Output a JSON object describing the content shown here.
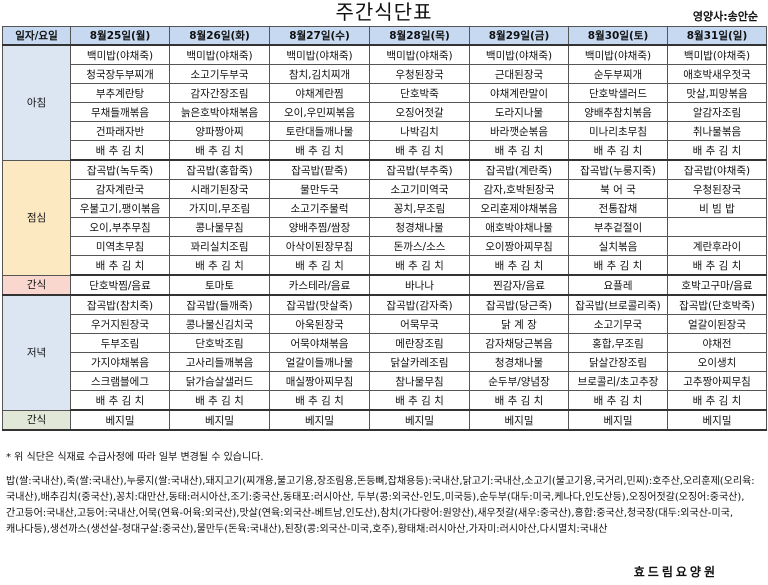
{
  "title": "주간식단표",
  "dietitian": "영양사:송안순",
  "header": {
    "corner": "일자/요일",
    "days": [
      "8월25일(월)",
      "8월26일(화)",
      "8월27일(수)",
      "8월28일(목)",
      "8월29일(금)",
      "8월30일(토)",
      "8월31일(일)"
    ]
  },
  "meals": {
    "breakfast": {
      "label": "아침",
      "rows": [
        [
          "백미밥(야채죽)",
          "백미밥(야채죽)",
          "백미밥(야채죽)",
          "백미밥(야채죽)",
          "백미밥(야채죽)",
          "백미밥(야채죽)",
          "백미밥(야채죽)"
        ],
        [
          "청국장두부찌개",
          "소고기두부국",
          "참치,김치찌개",
          "우청된장국",
          "근대된장국",
          "순두부찌개",
          "애호박새우젓국"
        ],
        [
          "부추계란탕",
          "감자간장조림",
          "야채계란찜",
          "단호박죽",
          "야채계란말이",
          "단호박샐러드",
          "맛살,피망볶음"
        ],
        [
          "무채들깨볶음",
          "늙은호박야채볶음",
          "오이,우민찌볶음",
          "오징어젓갈",
          "도라지나물",
          "양배추참치볶음",
          "알감자조림"
        ],
        [
          "건파래자반",
          "양파짱아찌",
          "토란대들깨나물",
          "나박김치",
          "바라깻순볶음",
          "미나리초무침",
          "취나물볶음"
        ],
        [
          "배 추 김 치",
          "배 추 김 치",
          "배 추 김 치",
          "배 추 김 치",
          "배 추 김 치",
          "배 추 김 치",
          "배 추 김 치"
        ]
      ]
    },
    "lunch": {
      "label": "점심",
      "rows": [
        [
          "잡곡밥(녹두죽)",
          "잡곡밥(홍합죽)",
          "잡곡밥(팥죽)",
          "잡곡밥(부추죽)",
          "잡곡밥(계란죽)",
          "잡곡밥(누룽지죽)",
          "잡곡밥(야채죽)"
        ],
        [
          "감자계란국",
          "시래기된장국",
          "물만두국",
          "소고기미역국",
          "감자,호박된장국",
          "북 어 국",
          "우청된장국"
        ],
        [
          "우불고기,팽이볶음",
          "가지미,무조림",
          "소고기주물럭",
          "꽁치,무조림",
          "오리훈제야채볶음",
          "전통잡채",
          "비 빔 밥"
        ],
        [
          "오이,부추무침",
          "콩나물무침",
          "양배추찜/쌈장",
          "청경채나물",
          "애호박야채나물",
          "부추겉절이",
          ""
        ],
        [
          "미역초무침",
          "꽈리실치조림",
          "아삭이된장무침",
          "돈까스/소스",
          "오이짱아찌무침",
          "실치볶음",
          "계란후라이"
        ],
        [
          "배 추 김 치",
          "배 추 김 치",
          "배 추 김 치",
          "배 추 김 치",
          "배 추 김 치",
          "배 추 김 치",
          "배 추 김 치"
        ]
      ]
    },
    "snack": {
      "label": "간식",
      "items": [
        "단호박찜/음료",
        "토마토",
        "카스테라/음료",
        "바나나",
        "찐감자/음료",
        "요플레",
        "호박고구마/음료"
      ]
    },
    "dinner": {
      "label": "저녁",
      "rows": [
        [
          "잡곡밥(참치죽)",
          "잡곡밥(들깨죽)",
          "잡곡밥(맛살죽)",
          "잡곡밥(감자죽)",
          "잡곡밥(당근죽)",
          "잡곡밥(브로콜리죽)",
          "잡곡밥(단호박죽)"
        ],
        [
          "우거지된장국",
          "콩나물신김치국",
          "아욱된장국",
          "어묵무국",
          "닭 계 장",
          "소고기무국",
          "얼갈이된장국"
        ],
        [
          "두부조림",
          "단호박조림",
          "어묵야채볶음",
          "메란장조림",
          "감자채당근볶음",
          "홍합,무조림",
          "야채전"
        ],
        [
          "가지야채볶음",
          "고사리들깨볶음",
          "얼갈이들깨나물",
          "닭살카레조림",
          "청경채나물",
          "닭살간장조림",
          "오이생치"
        ],
        [
          "스크램블에그",
          "닭가슴살샐러드",
          "매실짱아찌무침",
          "참나물무침",
          "순두부/양념장",
          "브로콜리/초고추장",
          "고추짱아찌무침"
        ],
        [
          "배 추 김 치",
          "배 추 김 치",
          "배 추 김 치",
          "배 추 김 치",
          "배 추 김 치",
          "배 추 김 치",
          "배 추 김 치"
        ]
      ]
    },
    "snack2": {
      "label": "간식",
      "items": [
        "베지밀",
        "베지밀",
        "베지밀",
        "베지밀",
        "베지밀",
        "베지밀",
        "베지밀"
      ]
    }
  },
  "note": "* 위 식단은 식재료 수급사정에 따라 일부 변경될 수 있습니다.",
  "origin": "밥(쌀:국내산),죽(쌀:국내산),누룽지(쌀:국내산),돼지고기(찌개용,불고기용,장조림용,돈등뼈,잡채용등):국내산,닭고기:국내산,소고기(불고기용,국거리,민찌):호주산,오리훈제(오리육:국내산),배추김치(중국산),꽁치:대만산,동태:러시아산,조기:중국산,동태포:러시아산, 두부(콩:외국산-인도,미국등),순두부(대두:미국,케나다,인도산등),오징어젓갈(오징어:중국산),간고등어:국내산,고등어:국내산,어묵(연육-어육:외국산),맛살(연육:외국산-베트남,인도산),참치(가다랑어:원양산),새우젓갈(새우:중국산),홍합:중국산,청국장(대두:외국산-미국,캐나다등),생선까스(생선살-청대구살:중국산),물만두(돈육:국내산),된장(콩:외국산-미국,호주),황태채:러시아산,가자미:러시아산,다시멸치:국내산",
  "facility": "효드림요양원"
}
